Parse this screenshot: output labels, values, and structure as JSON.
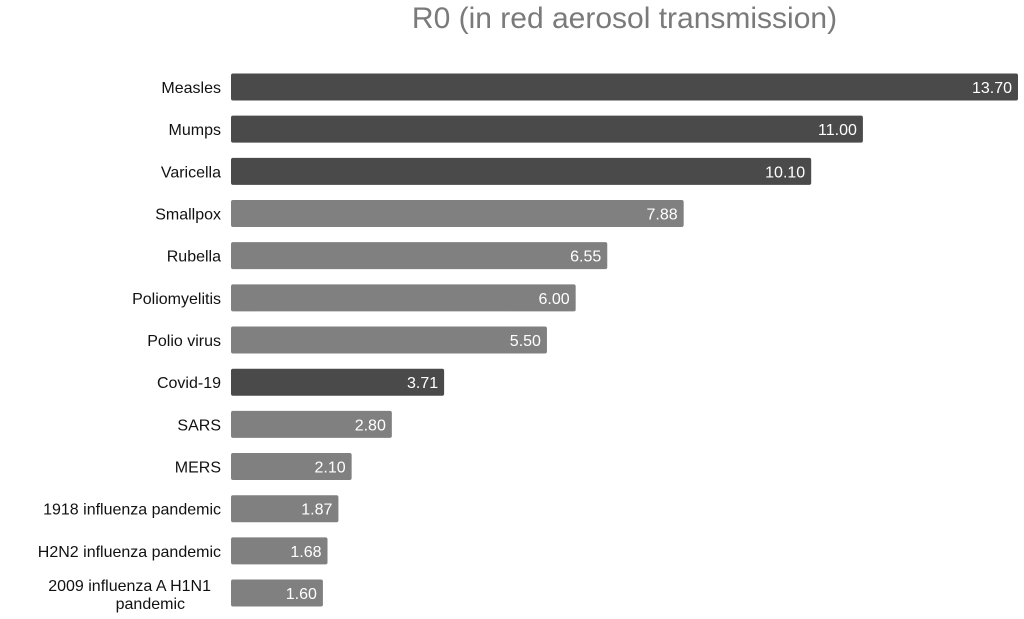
{
  "chart_data": {
    "type": "bar",
    "orientation": "horizontal",
    "title": "R0 (in red aerosol transmission)",
    "xlabel": "",
    "ylabel": "",
    "categories": [
      "Measles",
      "Mumps",
      "Varicella",
      "Smallpox",
      "Rubella",
      "Poliomyelitis",
      "Polio virus",
      "Covid-19",
      "SARS",
      "MERS",
      "1918 influenza pandemic",
      "H2N2 influenza pandemic",
      "2009 influenza A H1N1 pandemic"
    ],
    "values": [
      13.7,
      11.0,
      10.1,
      7.88,
      6.55,
      6.0,
      5.5,
      3.71,
      2.8,
      2.1,
      1.87,
      1.68,
      1.6
    ],
    "value_labels": [
      "13.70",
      "11.00",
      "10.10",
      "7.88",
      "6.55",
      "6.00",
      "5.50",
      "3.71",
      "2.80",
      "2.10",
      "1.87",
      "1.68",
      "1.60"
    ],
    "highlighted": [
      "Measles",
      "Mumps",
      "Varicella",
      "Covid-19"
    ],
    "xlim": [
      0,
      13.7
    ],
    "grid": false,
    "legend": "none",
    "colors": {
      "highlight": "#4a4a4a",
      "default": "#808080",
      "value_text": "#ffffff"
    }
  }
}
